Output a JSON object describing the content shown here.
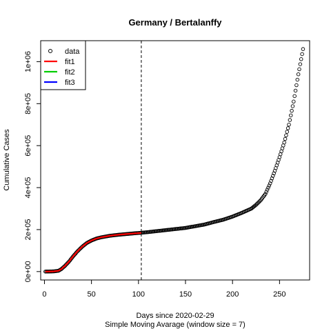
{
  "chart_data": {
    "type": "scatter",
    "title": "Germany / Bertalanffy",
    "xlabel": "Days since 2020-02-29",
    "xlabel2": "Simple Moving Avarage (window size = 7)",
    "ylabel": "Cumulative Cases",
    "xlim": [
      -4,
      282
    ],
    "ylim": [
      -40000,
      1100000
    ],
    "x_ticks": [
      0,
      50,
      100,
      150,
      200,
      250
    ],
    "x_tick_labels": [
      "0",
      "50",
      "100",
      "150",
      "200",
      "250"
    ],
    "y_ticks": [
      0,
      200000,
      400000,
      600000,
      800000,
      1000000
    ],
    "y_tick_labels": [
      "0e+00",
      "2e+05",
      "4e+05",
      "6e+05",
      "8e+05",
      "1e+06"
    ],
    "vline_x": 103,
    "legend": {
      "position": "top-left",
      "entries": [
        {
          "label": "data",
          "kind": "point",
          "color": "#000000"
        },
        {
          "label": "fit1",
          "kind": "line",
          "color": "#ff0000"
        },
        {
          "label": "fit2",
          "kind": "line",
          "color": "#00cd00"
        },
        {
          "label": "fit3",
          "kind": "line",
          "color": "#0000ff"
        }
      ]
    },
    "data_keypoints": [
      [
        1,
        0
      ],
      [
        10,
        1000
      ],
      [
        15,
        4000
      ],
      [
        18,
        12000
      ],
      [
        22,
        28000
      ],
      [
        26,
        47000
      ],
      [
        30,
        70000
      ],
      [
        35,
        96000
      ],
      [
        40,
        118000
      ],
      [
        45,
        136000
      ],
      [
        50,
        148000
      ],
      [
        55,
        157000
      ],
      [
        60,
        163000
      ],
      [
        70,
        171000
      ],
      [
        80,
        176000
      ],
      [
        90,
        180000
      ],
      [
        100,
        184000
      ],
      [
        110,
        188000
      ],
      [
        120,
        193000
      ],
      [
        130,
        198000
      ],
      [
        140,
        203000
      ],
      [
        150,
        208000
      ],
      [
        160,
        216000
      ],
      [
        170,
        224000
      ],
      [
        180,
        236000
      ],
      [
        190,
        247000
      ],
      [
        200,
        262000
      ],
      [
        210,
        280000
      ],
      [
        220,
        300000
      ],
      [
        225,
        318000
      ],
      [
        230,
        340000
      ],
      [
        235,
        370000
      ],
      [
        240,
        420000
      ],
      [
        245,
        480000
      ],
      [
        250,
        545000
      ],
      [
        255,
        615000
      ],
      [
        260,
        700000
      ],
      [
        265,
        810000
      ],
      [
        270,
        940000
      ],
      [
        275,
        1060000
      ]
    ],
    "fit1_keypoints": [
      [
        1,
        0
      ],
      [
        10,
        1000
      ],
      [
        15,
        4000
      ],
      [
        18,
        12000
      ],
      [
        22,
        28000
      ],
      [
        26,
        47000
      ],
      [
        30,
        70000
      ],
      [
        35,
        96000
      ],
      [
        40,
        118000
      ],
      [
        45,
        136000
      ],
      [
        50,
        148000
      ],
      [
        55,
        157000
      ],
      [
        60,
        163000
      ],
      [
        70,
        171000
      ],
      [
        80,
        176000
      ],
      [
        90,
        180000
      ],
      [
        103,
        184000
      ]
    ]
  }
}
